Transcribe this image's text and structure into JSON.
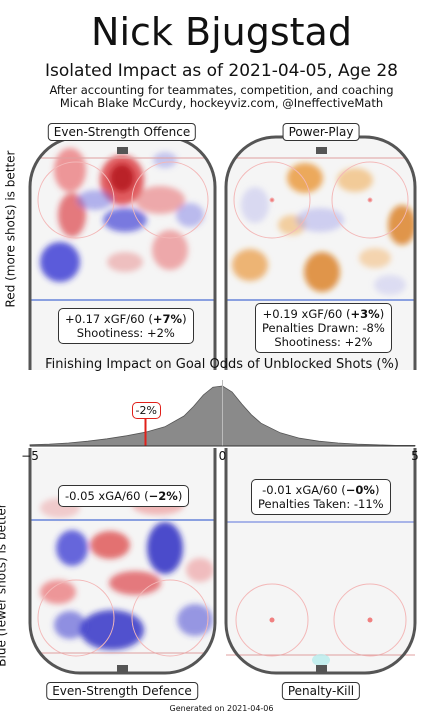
{
  "header": {
    "title": "Nick Bjugstad",
    "subtitle": "Isolated Impact as of 2021-04-05, Age 28",
    "note_line1": "After accounting for teammates, competition, and coaching",
    "note_line2": "Micah Blake McCurdy, hockeyviz.com, @IneffectiveMath"
  },
  "side_labels": {
    "top": "Red (more shots) is better",
    "bottom": "Blue (fewer shots) is better"
  },
  "panels": {
    "es_offence": {
      "label": "Even-Strength Offence",
      "xg_prefix": "+0.17 xGF/60 (",
      "xg_pct": "+7%",
      "xg_suffix": ")",
      "shootiness": "Shootiness: +2%"
    },
    "power_play": {
      "label": "Power-Play",
      "xg_prefix": "+0.19 xGF/60 (",
      "xg_pct": "+3%",
      "xg_suffix": ")",
      "penalties": "Penalties Drawn: -8%",
      "shootiness": "Shootiness: +2%"
    },
    "es_defence": {
      "label": "Even-Strength Defence",
      "xg_prefix": "-0.05 xGA/60 (",
      "xg_pct": "−2%",
      "xg_suffix": ")"
    },
    "penalty_kill": {
      "label": "Penalty-Kill",
      "xg_prefix": "-0.01 xGA/60 (",
      "xg_pct": "−0%",
      "xg_suffix": ")",
      "penalties": "Penalties Taken: -11%"
    }
  },
  "chart_data": {
    "type": "area",
    "title": "Finishing Impact on Goal Odds of Unblocked Shots (%)",
    "xlim": [
      -5,
      5
    ],
    "tick_values": [
      -5,
      0,
      5
    ],
    "tick_labels": [
      "−5",
      "0",
      "5"
    ],
    "marker": {
      "value": -2,
      "label": "-2%"
    },
    "distribution": {
      "x": [
        -5,
        -4.5,
        -4,
        -3.5,
        -3,
        -2.5,
        -2,
        -1.5,
        -1,
        -0.75,
        -0.5,
        -0.25,
        0,
        0.25,
        0.5,
        0.75,
        1,
        1.5,
        2,
        2.5,
        3,
        3.5,
        4,
        4.5,
        5
      ],
      "density": [
        0.02,
        0.03,
        0.05,
        0.08,
        0.12,
        0.17,
        0.23,
        0.32,
        0.5,
        0.66,
        0.85,
        0.98,
        1.0,
        0.9,
        0.7,
        0.52,
        0.38,
        0.22,
        0.13,
        0.08,
        0.05,
        0.03,
        0.02,
        0.01,
        0.01
      ]
    }
  },
  "colors": {
    "offence_red": "#d9282b",
    "defence_blue": "#2020c0",
    "pp_orange": "#d8760f",
    "marker_red": "#e0201a",
    "dist_fill": "#8a8a8a"
  },
  "footer": "Generated on 2021-04-06"
}
